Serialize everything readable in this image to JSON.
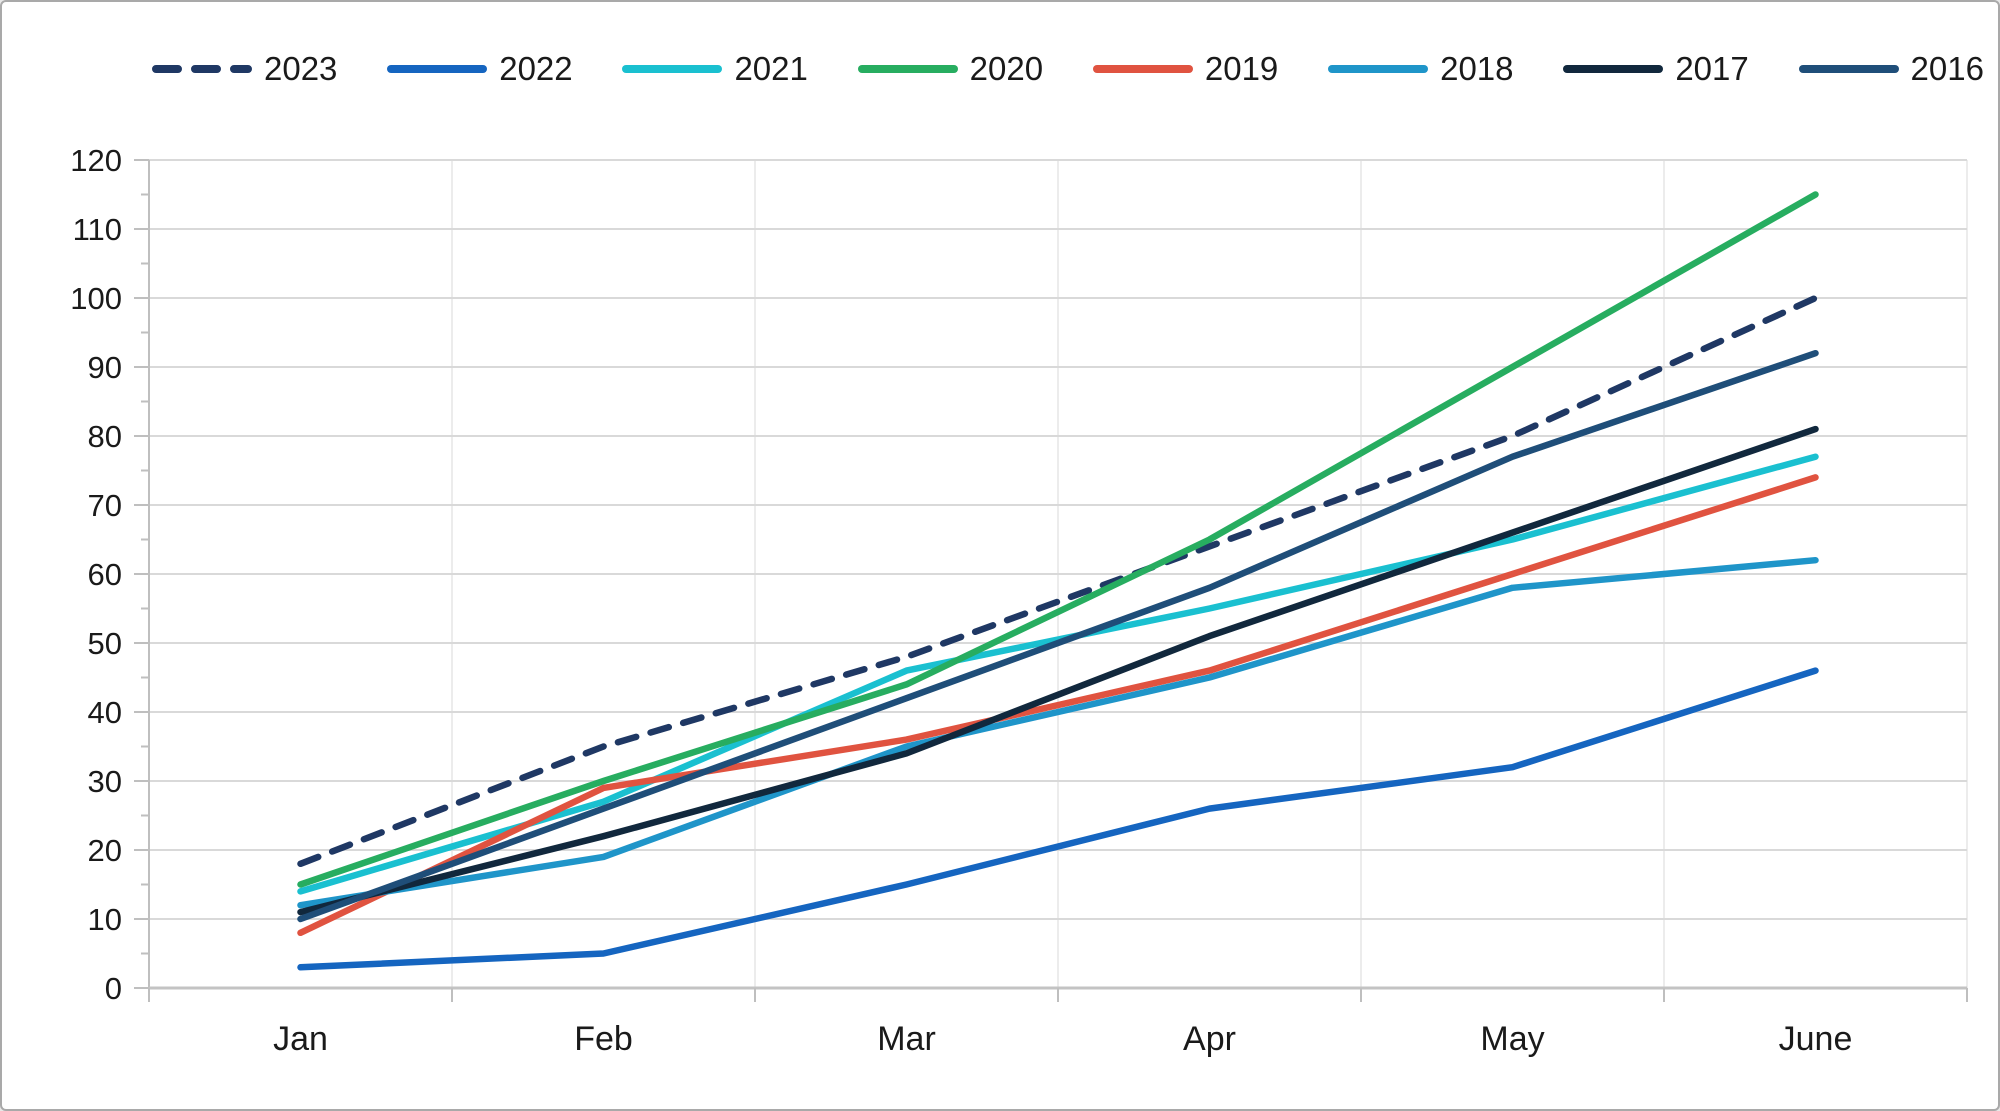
{
  "chart_data": {
    "type": "line",
    "title": "",
    "xlabel": "",
    "ylabel": "",
    "categories": [
      "Jan",
      "Feb",
      "Mar",
      "Apr",
      "May",
      "June"
    ],
    "series": [
      {
        "name": "2023",
        "values": [
          18,
          35,
          48,
          64,
          80,
          100
        ],
        "color": "#1f3864",
        "dashed": true
      },
      {
        "name": "2022",
        "values": [
          3,
          5,
          15,
          26,
          32,
          46
        ],
        "color": "#1565c0",
        "dashed": false
      },
      {
        "name": "2021",
        "values": [
          14,
          27,
          46,
          55,
          65,
          77
        ],
        "color": "#1ac0d0",
        "dashed": false
      },
      {
        "name": "2020",
        "values": [
          15,
          30,
          44,
          65,
          90,
          115
        ],
        "color": "#27ad60",
        "dashed": false
      },
      {
        "name": "2019",
        "values": [
          8,
          29,
          36,
          46,
          60,
          74
        ],
        "color": "#e05340",
        "dashed": false
      },
      {
        "name": "2018",
        "values": [
          12,
          19,
          35,
          45,
          58,
          62
        ],
        "color": "#1f95c9",
        "dashed": false
      },
      {
        "name": "2017",
        "values": [
          11,
          22,
          34,
          51,
          66,
          81
        ],
        "color": "#11283d",
        "dashed": false
      },
      {
        "name": "2016",
        "values": [
          10,
          26,
          42,
          58,
          77,
          92
        ],
        "color": "#1f4e79",
        "dashed": false
      }
    ],
    "ylim": [
      0,
      120
    ],
    "yticks": [
      0,
      10,
      20,
      30,
      40,
      50,
      60,
      70,
      80,
      90,
      100,
      110,
      120
    ],
    "ytick_minor_step": 5,
    "grid": true,
    "legend_position": "top"
  },
  "style_colors": {
    "gridline": "#d9d9d9",
    "gridline_vertical": "#ececec",
    "axis_line": "#bfbfbf",
    "tick_mark": "#bfbfbf",
    "text": "#1a1a1a"
  }
}
